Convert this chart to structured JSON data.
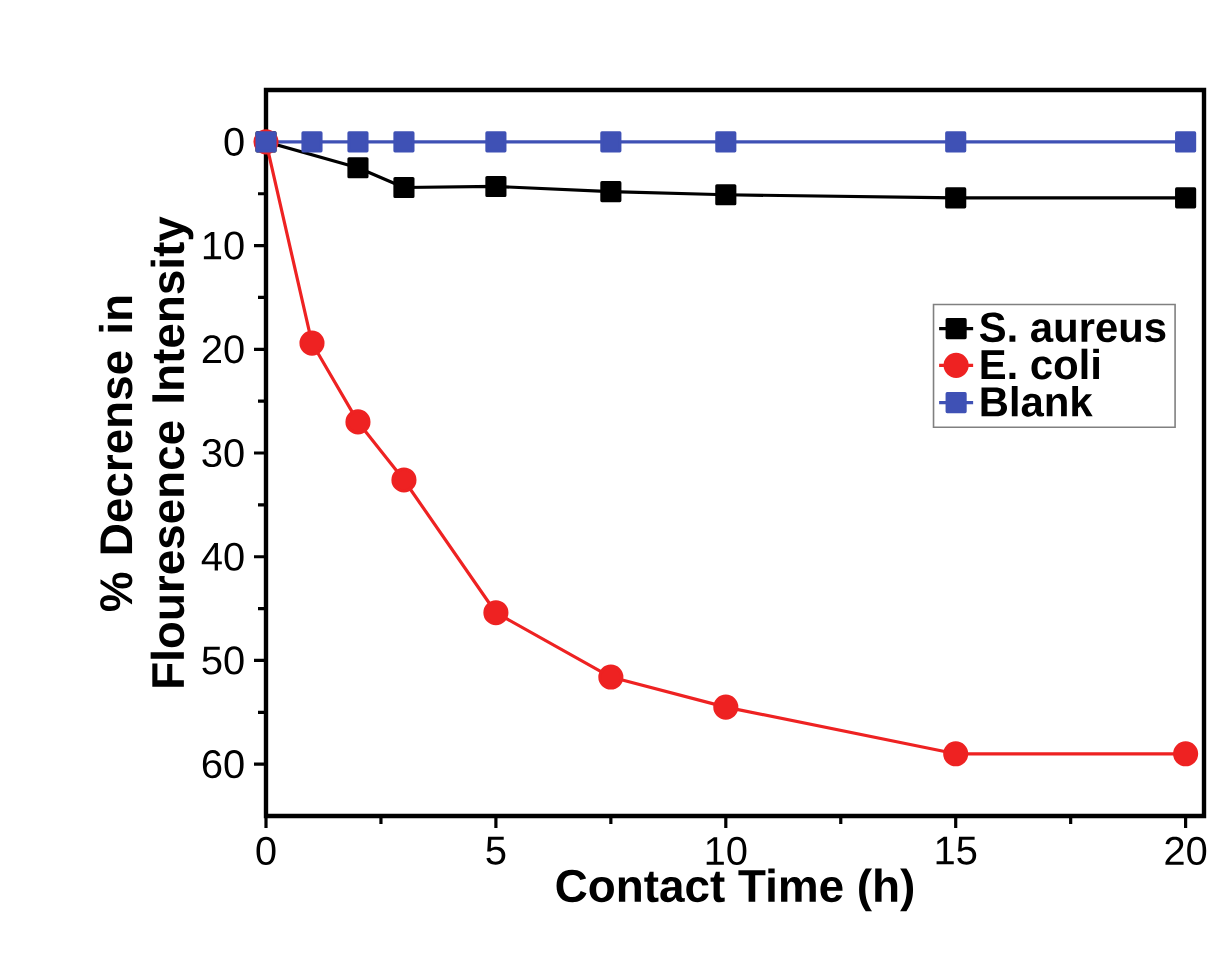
{
  "chart_data": {
    "type": "line",
    "xlabel": "Contact Time (h)",
    "ylabel": "% Decrense in Flouresence Intensity",
    "x": [
      0,
      1,
      2,
      3,
      5,
      7.5,
      10,
      15,
      20
    ],
    "series": [
      {
        "name": "S. aureus",
        "color": "#000000",
        "marker": "square",
        "values": [
          0,
          null,
          2.5,
          4.4,
          4.3,
          4.8,
          5.1,
          5.4,
          5.4
        ]
      },
      {
        "name": "E. coli",
        "color": "#ee2222",
        "marker": "circle",
        "values": [
          0,
          19.4,
          27.0,
          32.6,
          45.4,
          51.6,
          54.5,
          59.0,
          59.0
        ]
      },
      {
        "name": "Blank",
        "color": "#3f51b5",
        "marker": "square",
        "values": [
          0,
          0,
          0,
          0,
          0,
          0,
          0,
          0,
          0
        ]
      }
    ],
    "xlim": [
      0,
      20.4
    ],
    "ylim": [
      65,
      -5
    ],
    "xticks": [
      0,
      5,
      10,
      15,
      20
    ],
    "yticks": [
      0,
      10,
      20,
      30,
      40,
      50,
      60
    ],
    "legend": "right",
    "grid": false,
    "line_style": "solid"
  }
}
